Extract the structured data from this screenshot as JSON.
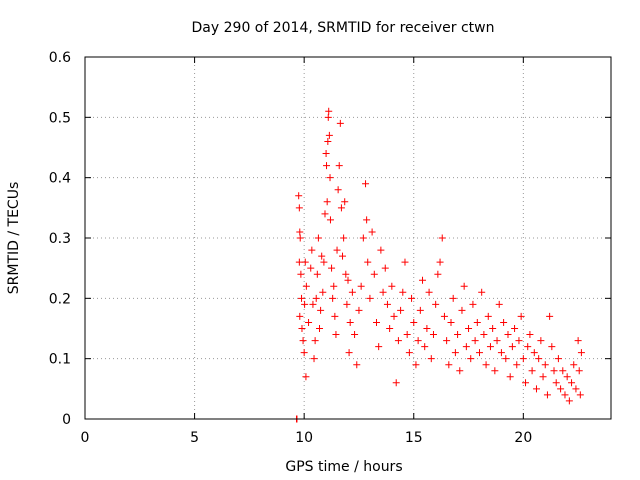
{
  "chart_data": {
    "type": "scatter",
    "title": "Day 290 of 2014, SRMTID for receiver ctwn",
    "xlabel": "GPS time / hours",
    "ylabel": "SRMTID / TECUs",
    "xlim": [
      0,
      24
    ],
    "ylim": [
      0,
      0.6
    ],
    "xticks": [
      0,
      5,
      10,
      15,
      20
    ],
    "yticks": [
      0,
      0.1,
      0.2,
      0.3,
      0.4,
      0.5,
      0.6
    ],
    "grid": true,
    "marker": "+",
    "color": "#ff0000",
    "series": [
      {
        "name": "SRMTID",
        "points": [
          [
            9.65,
            0.0
          ],
          [
            9.66,
            0.0
          ],
          [
            9.67,
            0.0
          ],
          [
            9.75,
            0.37
          ],
          [
            9.78,
            0.35
          ],
          [
            9.8,
            0.31
          ],
          [
            9.78,
            0.26
          ],
          [
            9.82,
            0.3
          ],
          [
            9.85,
            0.24
          ],
          [
            9.88,
            0.2
          ],
          [
            9.8,
            0.17
          ],
          [
            9.9,
            0.15
          ],
          [
            9.95,
            0.13
          ],
          [
            10.0,
            0.11
          ],
          [
            10.02,
            0.19
          ],
          [
            10.05,
            0.26
          ],
          [
            10.08,
            0.07
          ],
          [
            10.1,
            0.22
          ],
          [
            10.2,
            0.16
          ],
          [
            10.3,
            0.25
          ],
          [
            10.35,
            0.28
          ],
          [
            10.4,
            0.19
          ],
          [
            10.45,
            0.1
          ],
          [
            10.5,
            0.13
          ],
          [
            10.55,
            0.2
          ],
          [
            10.6,
            0.24
          ],
          [
            10.65,
            0.3
          ],
          [
            10.7,
            0.15
          ],
          [
            10.75,
            0.18
          ],
          [
            10.8,
            0.27
          ],
          [
            10.85,
            0.21
          ],
          [
            10.9,
            0.26
          ],
          [
            10.95,
            0.34
          ],
          [
            11.0,
            0.44
          ],
          [
            11.02,
            0.42
          ],
          [
            11.05,
            0.36
          ],
          [
            11.08,
            0.46
          ],
          [
            11.1,
            0.5
          ],
          [
            11.12,
            0.51
          ],
          [
            11.15,
            0.47
          ],
          [
            11.18,
            0.4
          ],
          [
            11.2,
            0.33
          ],
          [
            11.25,
            0.25
          ],
          [
            11.3,
            0.2
          ],
          [
            11.35,
            0.22
          ],
          [
            11.4,
            0.17
          ],
          [
            11.45,
            0.14
          ],
          [
            11.5,
            0.28
          ],
          [
            11.55,
            0.38
          ],
          [
            11.6,
            0.42
          ],
          [
            11.65,
            0.49
          ],
          [
            11.7,
            0.35
          ],
          [
            11.75,
            0.27
          ],
          [
            11.8,
            0.3
          ],
          [
            11.85,
            0.36
          ],
          [
            11.9,
            0.24
          ],
          [
            11.95,
            0.19
          ],
          [
            12.0,
            0.23
          ],
          [
            12.05,
            0.11
          ],
          [
            12.1,
            0.16
          ],
          [
            12.2,
            0.21
          ],
          [
            12.3,
            0.14
          ],
          [
            12.4,
            0.09
          ],
          [
            12.5,
            0.18
          ],
          [
            12.6,
            0.22
          ],
          [
            12.7,
            0.3
          ],
          [
            12.8,
            0.39
          ],
          [
            12.85,
            0.33
          ],
          [
            12.9,
            0.26
          ],
          [
            13.0,
            0.2
          ],
          [
            13.1,
            0.31
          ],
          [
            13.2,
            0.24
          ],
          [
            13.3,
            0.16
          ],
          [
            13.4,
            0.12
          ],
          [
            13.5,
            0.28
          ],
          [
            13.6,
            0.21
          ],
          [
            13.7,
            0.25
          ],
          [
            13.8,
            0.19
          ],
          [
            13.9,
            0.15
          ],
          [
            14.0,
            0.22
          ],
          [
            14.1,
            0.17
          ],
          [
            14.2,
            0.06
          ],
          [
            14.3,
            0.13
          ],
          [
            14.4,
            0.18
          ],
          [
            14.5,
            0.21
          ],
          [
            14.6,
            0.26
          ],
          [
            14.7,
            0.14
          ],
          [
            14.8,
            0.11
          ],
          [
            14.9,
            0.2
          ],
          [
            15.0,
            0.16
          ],
          [
            15.1,
            0.09
          ],
          [
            15.2,
            0.13
          ],
          [
            15.3,
            0.18
          ],
          [
            15.4,
            0.23
          ],
          [
            15.5,
            0.12
          ],
          [
            15.6,
            0.15
          ],
          [
            15.7,
            0.21
          ],
          [
            15.8,
            0.1
          ],
          [
            15.9,
            0.14
          ],
          [
            16.0,
            0.19
          ],
          [
            16.1,
            0.24
          ],
          [
            16.2,
            0.26
          ],
          [
            16.3,
            0.3
          ],
          [
            16.4,
            0.17
          ],
          [
            16.5,
            0.13
          ],
          [
            16.6,
            0.09
          ],
          [
            16.7,
            0.16
          ],
          [
            16.8,
            0.2
          ],
          [
            16.9,
            0.11
          ],
          [
            17.0,
            0.14
          ],
          [
            17.1,
            0.08
          ],
          [
            17.2,
            0.18
          ],
          [
            17.3,
            0.22
          ],
          [
            17.4,
            0.12
          ],
          [
            17.5,
            0.15
          ],
          [
            17.6,
            0.1
          ],
          [
            17.7,
            0.19
          ],
          [
            17.8,
            0.13
          ],
          [
            17.9,
            0.16
          ],
          [
            18.0,
            0.11
          ],
          [
            18.1,
            0.21
          ],
          [
            18.2,
            0.14
          ],
          [
            18.3,
            0.09
          ],
          [
            18.4,
            0.17
          ],
          [
            18.5,
            0.12
          ],
          [
            18.6,
            0.15
          ],
          [
            18.7,
            0.08
          ],
          [
            18.8,
            0.13
          ],
          [
            18.9,
            0.19
          ],
          [
            19.0,
            0.11
          ],
          [
            19.1,
            0.16
          ],
          [
            19.2,
            0.1
          ],
          [
            19.3,
            0.14
          ],
          [
            19.4,
            0.07
          ],
          [
            19.5,
            0.12
          ],
          [
            19.6,
            0.15
          ],
          [
            19.7,
            0.09
          ],
          [
            19.8,
            0.13
          ],
          [
            19.9,
            0.17
          ],
          [
            20.0,
            0.1
          ],
          [
            20.1,
            0.06
          ],
          [
            20.2,
            0.12
          ],
          [
            20.3,
            0.14
          ],
          [
            20.4,
            0.08
          ],
          [
            20.5,
            0.11
          ],
          [
            20.6,
            0.05
          ],
          [
            20.7,
            0.1
          ],
          [
            20.8,
            0.13
          ],
          [
            20.9,
            0.07
          ],
          [
            21.0,
            0.09
          ],
          [
            21.1,
            0.04
          ],
          [
            21.2,
            0.17
          ],
          [
            21.3,
            0.12
          ],
          [
            21.4,
            0.08
          ],
          [
            21.5,
            0.06
          ],
          [
            21.6,
            0.1
          ],
          [
            21.7,
            0.05
          ],
          [
            21.8,
            0.08
          ],
          [
            21.9,
            0.04
          ],
          [
            22.0,
            0.07
          ],
          [
            22.1,
            0.03
          ],
          [
            22.2,
            0.06
          ],
          [
            22.3,
            0.09
          ],
          [
            22.4,
            0.05
          ],
          [
            22.5,
            0.13
          ],
          [
            22.55,
            0.08
          ],
          [
            22.6,
            0.04
          ],
          [
            22.65,
            0.11
          ]
        ]
      }
    ]
  }
}
